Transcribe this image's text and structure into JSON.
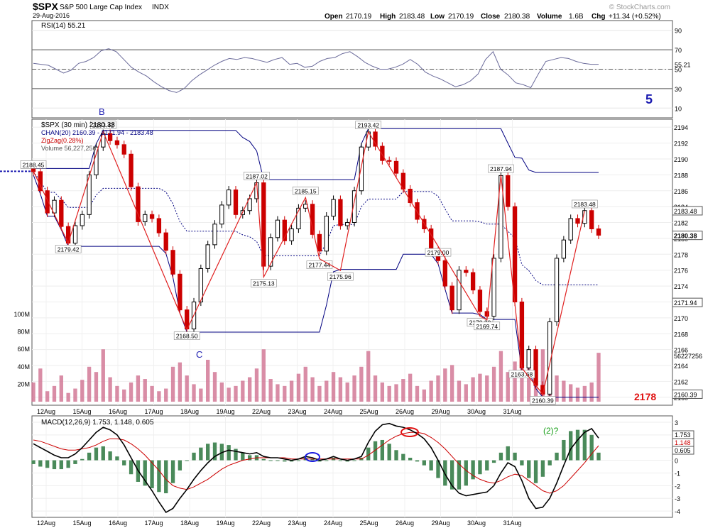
{
  "header": {
    "symbol": "$SPX",
    "name": "S&P 500 Large Cap Index",
    "exchange": "INDX",
    "date": "29-Aug-2016",
    "watermark": "© StockCharts.com",
    "open_label": "Open",
    "open": "2170.19",
    "high_label": "High",
    "high": "2183.48",
    "low_label": "Low",
    "low": "2170.19",
    "close_label": "Close",
    "close": "2180.38",
    "volume_label": "Volume",
    "volume": "1.6B",
    "chg_label": "Chg",
    "chg": "+11.34 (+0.52%)"
  },
  "annotations": {
    "wave_b": "B",
    "wave_c": "C",
    "wave_5": "5",
    "wave_2": "(2)?",
    "target": "2178"
  },
  "colors": {
    "up": "#000000",
    "down": "#cc0000",
    "channel": "#000080",
    "zigzag": "#e02020",
    "volume": "#d07090",
    "rsi": "#6a6a9a",
    "macd": "#000000",
    "signal": "#cc0000",
    "hist": "#4a8a5a"
  },
  "chart_data": [
    {
      "type": "line",
      "title": "RSI(14) 55.21",
      "ylim": [
        0,
        100
      ],
      "yticks": [
        "90",
        "70",
        "50",
        "30",
        "10"
      ],
      "last_label": "55.21",
      "values": [
        56,
        55,
        54,
        50,
        46,
        49,
        56,
        58,
        62,
        69,
        71,
        68,
        60,
        52,
        47,
        43,
        37,
        32,
        28,
        26,
        30,
        38,
        44,
        49,
        54,
        58,
        61,
        60,
        62,
        61,
        59,
        57,
        60,
        62,
        55,
        56,
        52,
        53,
        58,
        61,
        62,
        66,
        68,
        63,
        57,
        53,
        50,
        50,
        52,
        55,
        60,
        55,
        47,
        43,
        40,
        36,
        32,
        34,
        38,
        45,
        60,
        68,
        50,
        44,
        36,
        34,
        31,
        45,
        58,
        60,
        62,
        61,
        58,
        56,
        55,
        55
      ],
      "reference_lines": [
        70,
        50,
        30
      ]
    },
    {
      "type": "candlestick",
      "title": "$SPX (30 min) 2180.38",
      "legend": [
        "CHAN(20) 2160.39 - 2171.94 - 2183.48",
        "ZigZag(0.28%)",
        "Volume 56,227,256"
      ],
      "ylim": [
        2159,
        2195
      ],
      "yticks": [
        "2194",
        "2192",
        "2190",
        "2188",
        "2186",
        "2184",
        "2182",
        "2180",
        "2178",
        "2176",
        "2174",
        "2172",
        "2170",
        "2168",
        "2166",
        "2164",
        "2162",
        "2160"
      ],
      "x_labels": [
        "12Aug",
        "15Aug",
        "16Aug",
        "17Aug",
        "18Aug",
        "19Aug",
        "22Aug",
        "23Aug",
        "24Aug",
        "25Aug",
        "26Aug",
        "29Aug",
        "30Aug",
        "31Aug"
      ],
      "price_tags": [
        "2183.48",
        "2180.38",
        "2171.94",
        "2160.39"
      ],
      "volume_tags": [
        "100M",
        "80M",
        "60M",
        "40M",
        "20M"
      ],
      "volume_last": "56227256",
      "closes": [
        2188.4,
        2186.0,
        2183.2,
        2184.8,
        2181.5,
        2179.4,
        2181.6,
        2183.0,
        2188.0,
        2191.5,
        2193.2,
        2192.3,
        2191.8,
        2190.6,
        2186.5,
        2182.1,
        2183.0,
        2182.5,
        2180.7,
        2178.5,
        2175.5,
        2171.0,
        2168.6,
        2172.0,
        2176.2,
        2179.2,
        2181.8,
        2184.2,
        2186.1,
        2183.0,
        2183.5,
        2185.0,
        2187.0,
        2176.5,
        2180.1,
        2182.3,
        2179.7,
        2181.2,
        2183.8,
        2184.3,
        2180.5,
        2178.4,
        2182.8,
        2184.9,
        2181.6,
        2182.0,
        2186.0,
        2191.5,
        2193.4,
        2191.6,
        2189.8,
        2189.7,
        2188.2,
        2186.2,
        2184.5,
        2182.4,
        2181.2,
        2178.4,
        2177.2,
        2174.0,
        2171.0,
        2176.0,
        2175.7,
        2173.5,
        2170.8,
        2170.2,
        2177.5,
        2187.9,
        2184.0,
        2172.0,
        2163.7,
        2166.0,
        2161.5,
        2160.4,
        2169.5,
        2177.5,
        2179.8,
        2182.5,
        2181.9,
        2183.5,
        2181.2,
        2180.4
      ],
      "zigzag": [
        {
          "label": "2188.45",
          "value": 2188.45
        },
        {
          "label": "2179.42",
          "value": 2179.42
        },
        {
          "label": "2193.42",
          "value": 2193.42
        },
        {
          "label": "2168.50",
          "value": 2168.5
        },
        {
          "label": "2187.02",
          "value": 2187.02
        },
        {
          "label": "2175.13",
          "value": 2175.13
        },
        {
          "label": "2185.15",
          "value": 2185.15
        },
        {
          "label": "2177.44",
          "value": 2177.44
        },
        {
          "label": "2175.96",
          "value": 2175.96
        },
        {
          "label": "2193.42",
          "value": 2193.42
        },
        {
          "label": "2179.00",
          "value": 2179.0
        },
        {
          "label": "2170.20",
          "value": 2170.2
        },
        {
          "label": "2169.74",
          "value": 2169.74
        },
        {
          "label": "2187.94",
          "value": 2187.94
        },
        {
          "label": "2163.68",
          "value": 2163.68
        },
        {
          "label": "2160.39",
          "value": 2160.39
        },
        {
          "label": "2183.48",
          "value": 2183.48
        }
      ],
      "volume": [
        22,
        38,
        12,
        18,
        30,
        10,
        15,
        25,
        40,
        34,
        60,
        28,
        18,
        14,
        22,
        30,
        26,
        18,
        12,
        15,
        40,
        45,
        30,
        20,
        15,
        48,
        34,
        22,
        16,
        18,
        24,
        28,
        38,
        60,
        26,
        20,
        18,
        24,
        32,
        40,
        28,
        18,
        24,
        34,
        28,
        22,
        30,
        40,
        58,
        30,
        22,
        18,
        20,
        26,
        32,
        18,
        14,
        24,
        30,
        38,
        42,
        24,
        20,
        28,
        32,
        30,
        40,
        58,
        34,
        46,
        54,
        40,
        34,
        60,
        42,
        30,
        24,
        20,
        16,
        18,
        22,
        56
      ]
    },
    {
      "type": "line",
      "title": "MACD(12,26,9) 1.753, 1.148, 0.605",
      "series": [
        {
          "name": "MACD",
          "last": "1.753"
        },
        {
          "name": "Signal",
          "last": "1.148"
        },
        {
          "name": "Histogram",
          "last": "0.605"
        }
      ],
      "ylim": [
        -4.5,
        3.5
      ],
      "yticks": [
        "3",
        "2",
        "1",
        "0",
        "-1",
        "-2",
        "-3",
        "-4"
      ],
      "macd": [
        1.3,
        1.0,
        0.7,
        0.4,
        0.2,
        0.2,
        0.5,
        1.0,
        1.6,
        2.2,
        2.6,
        2.4,
        2.0,
        1.2,
        0.2,
        -0.8,
        -1.6,
        -2.4,
        -3.3,
        -4.1,
        -3.8,
        -3.0,
        -2.3,
        -1.5,
        -0.8,
        -0.2,
        0.3,
        0.6,
        0.8,
        0.7,
        0.6,
        0.5,
        0.6,
        0.3,
        0.2,
        0.2,
        0.1,
        0.0,
        0.1,
        0.3,
        0.2,
        0.0,
        0.1,
        0.3,
        0.1,
        0.0,
        0.1,
        0.3,
        1.4,
        2.3,
        2.8,
        2.9,
        2.7,
        2.6,
        2.4,
        2.1,
        1.7,
        1.0,
        0.0,
        -1.1,
        -2.0,
        -2.6,
        -2.8,
        -2.7,
        -2.6,
        -2.5,
        -2.0,
        -1.0,
        -0.2,
        -0.5,
        -1.6,
        -3.0,
        -3.8,
        -3.7,
        -3.0,
        -1.8,
        -0.4,
        0.9,
        1.6,
        2.2,
        2.5,
        1.75
      ],
      "signal": [
        1.6,
        1.5,
        1.3,
        1.1,
        0.9,
        0.8,
        0.8,
        0.9,
        1.0,
        1.2,
        1.5,
        1.7,
        1.7,
        1.6,
        1.3,
        0.9,
        0.4,
        -0.2,
        -0.8,
        -1.5,
        -2.0,
        -2.2,
        -2.3,
        -2.1,
        -1.8,
        -1.5,
        -1.1,
        -0.7,
        -0.4,
        -0.2,
        0.0,
        0.1,
        0.2,
        0.2,
        0.2,
        0.2,
        0.2,
        0.1,
        0.1,
        0.1,
        0.1,
        0.1,
        0.1,
        0.1,
        0.1,
        0.1,
        0.1,
        0.1,
        0.4,
        0.8,
        1.2,
        1.6,
        1.9,
        2.1,
        2.2,
        2.2,
        2.1,
        1.8,
        1.4,
        0.9,
        0.3,
        -0.3,
        -0.8,
        -1.2,
        -1.5,
        -1.7,
        -1.8,
        -1.6,
        -1.3,
        -1.1,
        -1.2,
        -1.6,
        -2.0,
        -2.4,
        -2.6,
        -2.4,
        -2.0,
        -1.4,
        -0.8,
        -0.2,
        0.5,
        1.15
      ]
    }
  ]
}
